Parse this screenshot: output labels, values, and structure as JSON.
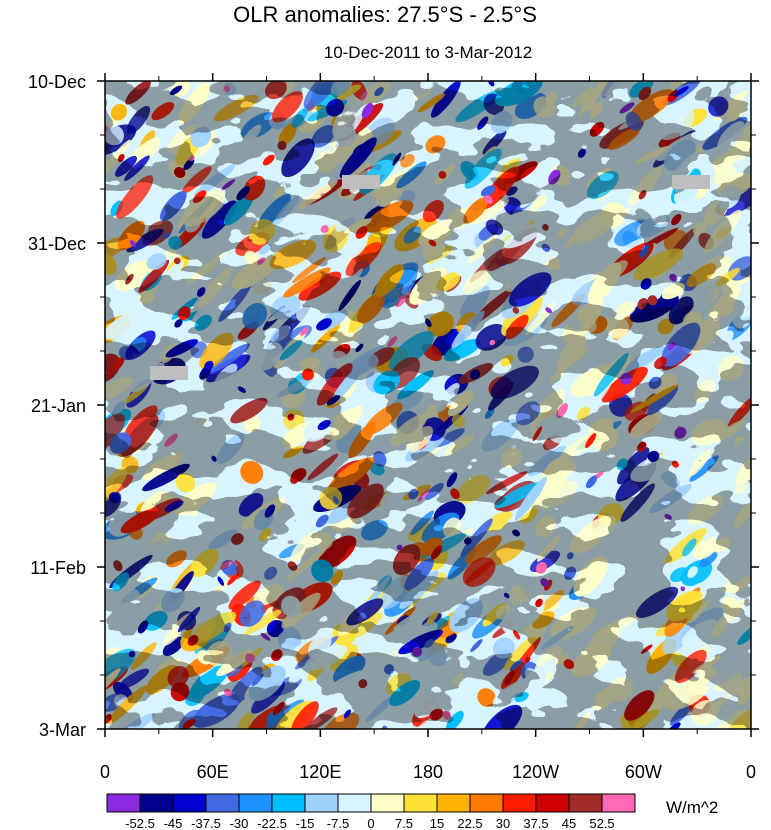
{
  "chart_data": {
    "type": "heatmap",
    "title": "OLR anomalies: 27.5°S - 2.5°S",
    "subtitle": "10-Dec-2011 to 3-Mar-2012",
    "x_ticks": [
      "0",
      "60E",
      "120E",
      "180",
      "120W",
      "60W",
      "0"
    ],
    "x_range": [
      0,
      360
    ],
    "y_ticks": [
      "10-Dec",
      "31-Dec",
      "21-Jan",
      "11-Feb",
      "3-Mar"
    ],
    "y_range_days": [
      0,
      84
    ],
    "colorbar": {
      "unit": "W/m^2",
      "labels": [
        "-52.5",
        "-45",
        "-37.5",
        "-30",
        "-22.5",
        "-15",
        "-7.5",
        "0",
        "7.5",
        "15",
        "22.5",
        "30",
        "37.5",
        "45",
        "52.5"
      ],
      "colors": [
        "#8a2be2",
        "#00008b",
        "#0000cd",
        "#4169e1",
        "#1e90ff",
        "#00bfff",
        "#a0d2ff",
        "#d8f4ff",
        "#ffffc8",
        "#ffe135",
        "#ffb300",
        "#ff7a00",
        "#ff1a00",
        "#cc0000",
        "#a52a2a",
        "#ff69b4"
      ]
    },
    "missing_color": "#bebebe"
  }
}
